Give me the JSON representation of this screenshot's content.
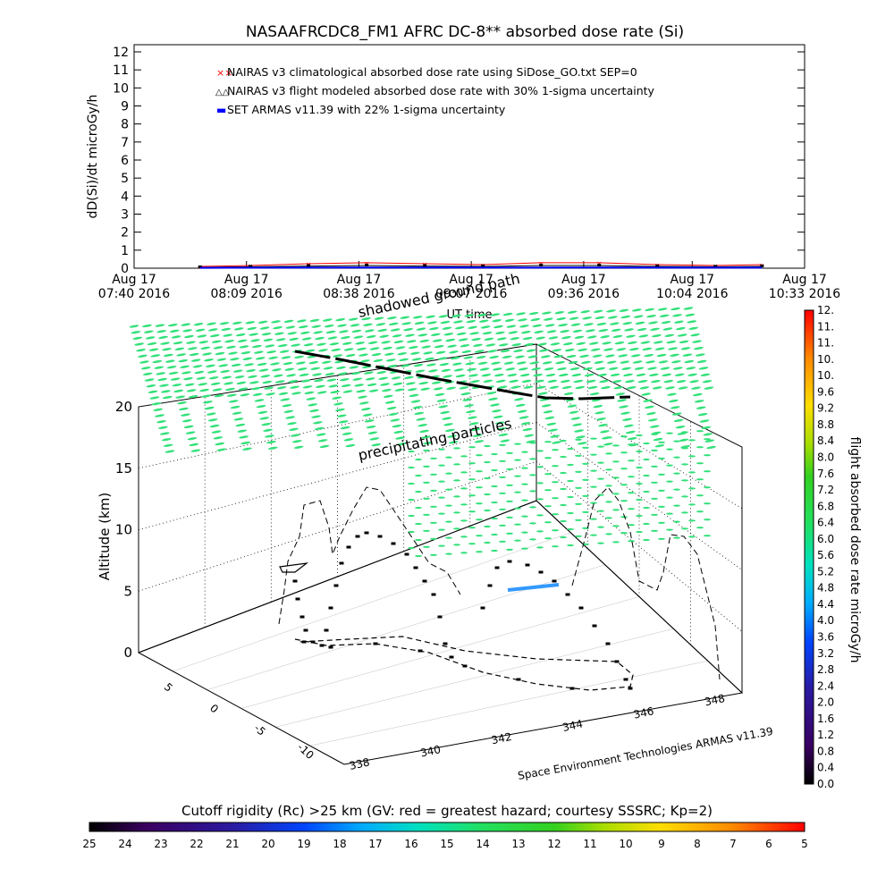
{
  "colors": {
    "nairas_clim": "#ff0000",
    "nairas_flight": "#000000",
    "armas": "#0000ff",
    "precip": "#33e07a",
    "hazard_dots": "#000000"
  },
  "chart_data": [
    {
      "type": "line",
      "title": "NASAAFRCDC8_FM1 AFRC DC-8** absorbed dose rate (Si)",
      "ylabel": "dD(Si)/dt microGy/h",
      "xlabel": "UT time",
      "ylim": [
        0,
        12
      ],
      "yticks": [
        "0",
        "1",
        "2",
        "3",
        "4",
        "5",
        "6",
        "7",
        "8",
        "9",
        "10",
        "11",
        "12"
      ],
      "xticks": [
        {
          "t": 0,
          "line1": "Aug 17",
          "line2": "07:40 2016"
        },
        {
          "t": 29,
          "line1": "Aug 17",
          "line2": "08:09 2016"
        },
        {
          "t": 58,
          "line1": "Aug 17",
          "line2": "08:38 2016"
        },
        {
          "t": 87,
          "line1": "Aug 17",
          "line2": "09:07 2016"
        },
        {
          "t": 116,
          "line1": "Aug 17",
          "line2": "09:36 2016"
        },
        {
          "t": 144,
          "line1": "Aug 17",
          "line2": "10:04 2016"
        },
        {
          "t": 173,
          "line1": "Aug 17",
          "line2": "10:33 2016"
        }
      ],
      "xlim": [
        0,
        173
      ],
      "legend": [
        {
          "marker": "××",
          "label": "NAIRAS v3 climatological absorbed dose rate using SiDose_GO.txt SEP=0"
        },
        {
          "marker": "△△",
          "label": "NAIRAS v3 flight modeled absorbed dose rate with 30% 1-sigma uncertainty"
        },
        {
          "marker": "▬",
          "label": "SET ARMAS v11.39 with 22% 1-sigma uncertainty"
        }
      ],
      "series": [
        {
          "name": "NAIRAS v3 climatological absorbed dose rate using SiDose_GO.txt SEP=0",
          "x": [
            17,
            30,
            45,
            60,
            75,
            90,
            105,
            120,
            135,
            150,
            162
          ],
          "values": [
            0.1,
            0.15,
            0.25,
            0.3,
            0.25,
            0.2,
            0.3,
            0.3,
            0.2,
            0.15,
            0.2
          ]
        },
        {
          "name": "NAIRAS v3 flight modeled absorbed dose rate with 30% 1-sigma uncertainty",
          "x": [
            17,
            30,
            45,
            60,
            75,
            90,
            105,
            120,
            135,
            150,
            162
          ],
          "values": [
            0.05,
            0.08,
            0.12,
            0.15,
            0.12,
            0.1,
            0.15,
            0.15,
            0.1,
            0.08,
            0.1
          ]
        },
        {
          "name": "SET ARMAS v11.39 with 22% 1-sigma uncertainty",
          "x": [
            17,
            40,
            60,
            80,
            100,
            120,
            140,
            162
          ],
          "values": [
            0.02,
            0.03,
            0.04,
            0.04,
            0.03,
            0.04,
            0.03,
            0.03
          ]
        }
      ]
    },
    {
      "type": "scatter",
      "zlabel": "Altitude (km)",
      "zticks": [
        "0",
        "5",
        "10",
        "15",
        "20"
      ],
      "zlim": [
        0,
        20
      ],
      "ylabel_ticks": [
        "-10",
        "-5",
        "0",
        "5"
      ],
      "xlabel_ticks": [
        "338",
        "340",
        "342",
        "344",
        "346",
        "348"
      ],
      "annotations": [
        "shadowed ground path",
        "precipitating particles",
        "Space Environment Technologies ARMAS v11.39"
      ],
      "colorbar_right": {
        "label": "flight absorbed dose rate microGy/h",
        "ticks": [
          "0.0",
          "0.4",
          "0.8",
          "1.2",
          "1.6",
          "2.0",
          "2.4",
          "2.8",
          "3.2",
          "3.6",
          "4.0",
          "4.4",
          "4.8",
          "5.2",
          "5.6",
          "6.0",
          "6.4",
          "6.8",
          "7.2",
          "7.6",
          "8.0",
          "8.4",
          "8.8",
          "9.2",
          "9.6",
          "10.",
          "10.",
          "11.",
          "11.",
          "12."
        ]
      },
      "colorbar_bottom": {
        "label": "Cutoff rigidity (Rc) >25 km (GV: red = greatest hazard; courtesy SSSRC; Kp=2)",
        "ticks": [
          "25",
          "24",
          "23",
          "22",
          "21",
          "20",
          "19",
          "18",
          "17",
          "16",
          "15",
          "14",
          "13",
          "12",
          "11",
          "10",
          "9",
          "8",
          "7",
          "6",
          "5"
        ]
      }
    }
  ]
}
